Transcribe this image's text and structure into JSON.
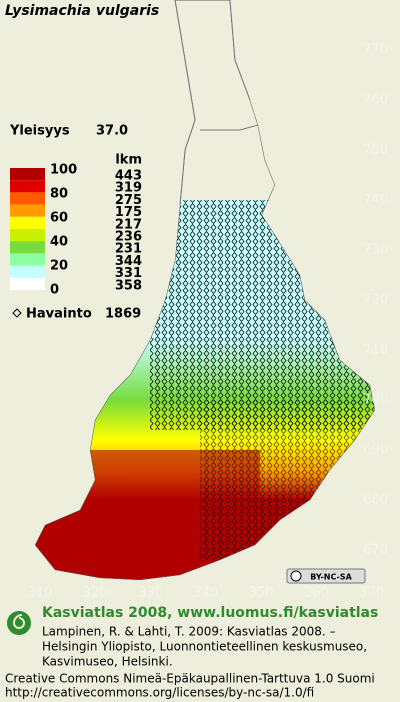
{
  "title": "Lysimachia vulgaris",
  "frequency": {
    "label": "Yleisyys",
    "value": "37.0"
  },
  "legend": {
    "count_header": "lkm",
    "levels": [
      "100",
      "80",
      "60",
      "40",
      "20",
      "0"
    ],
    "counts": [
      "443",
      "319",
      "275",
      "175",
      "217",
      "236",
      "231",
      "344",
      "331",
      "358"
    ],
    "colors": [
      "#b00000",
      "#e00000",
      "#ff5a00",
      "#ff9c00",
      "#ffff00",
      "#c8f000",
      "#78dc3c",
      "#8cffa0",
      "#c4ffff",
      "#ffffff"
    ]
  },
  "observations": {
    "label": "Havainto",
    "count": "1869"
  },
  "grid": {
    "y_labels": [
      "770",
      "760",
      "750",
      "740",
      "730",
      "720",
      "710",
      "700",
      "690",
      "680",
      "670"
    ],
    "x_labels": [
      "310",
      "320",
      "330",
      "340",
      "350",
      "360",
      "370"
    ]
  },
  "license_badge": "BY-NC-SA",
  "footer": {
    "heading": "Kasviatlas 2008, www.luomus.fi/kasviatlas",
    "citation": [
      "Lampinen, R. & Lahti, T. 2009: Kasviatlas 2008. –",
      "Helsingin Yliopisto, Luonnontieteellinen keskusmuseo,",
      "Kasvimuseo, Helsinki."
    ],
    "license": [
      "Creative Commons Nimeä-Epäkaupallinen-Tarttuva 1.0 Suomi",
      "http://creativecommons.org/licenses/by-nc-sa/1.0/fi"
    ]
  }
}
